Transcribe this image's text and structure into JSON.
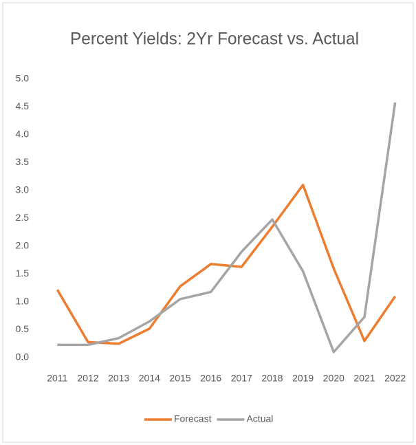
{
  "chart_data": {
    "type": "line",
    "title": "Percent Yields: 2Yr Forecast vs. Actual",
    "categories": [
      "2011",
      "2012",
      "2013",
      "2014",
      "2015",
      "2016",
      "2017",
      "2018",
      "2019",
      "2020",
      "2021",
      "2022"
    ],
    "series": [
      {
        "name": "Forecast",
        "color": "#ed7d31",
        "values": [
          1.22,
          0.28,
          0.25,
          0.52,
          1.28,
          1.68,
          1.63,
          2.35,
          3.1,
          1.6,
          0.3,
          1.1
        ]
      },
      {
        "name": "Actual",
        "color": "#a5a5a5",
        "values": [
          0.23,
          0.23,
          0.35,
          0.65,
          1.05,
          1.18,
          1.9,
          2.48,
          1.55,
          0.1,
          0.73,
          4.58
        ]
      }
    ],
    "ylim": [
      0,
      5
    ],
    "yticks": [
      {
        "value": 0,
        "label": "0.0"
      },
      {
        "value": 0.5,
        "label": "0.5"
      },
      {
        "value": 1,
        "label": "1.0"
      },
      {
        "value": 1.5,
        "label": "1.5"
      },
      {
        "value": 2,
        "label": "2.0"
      },
      {
        "value": 2.5,
        "label": "2.5"
      },
      {
        "value": 3,
        "label": "3.0"
      },
      {
        "value": 3.5,
        "label": "3.5"
      },
      {
        "value": 4,
        "label": "4.0"
      },
      {
        "value": 4.5,
        "label": "4.5"
      },
      {
        "value": 5,
        "label": "5.0"
      }
    ],
    "grid": false,
    "legend": "bottom"
  }
}
